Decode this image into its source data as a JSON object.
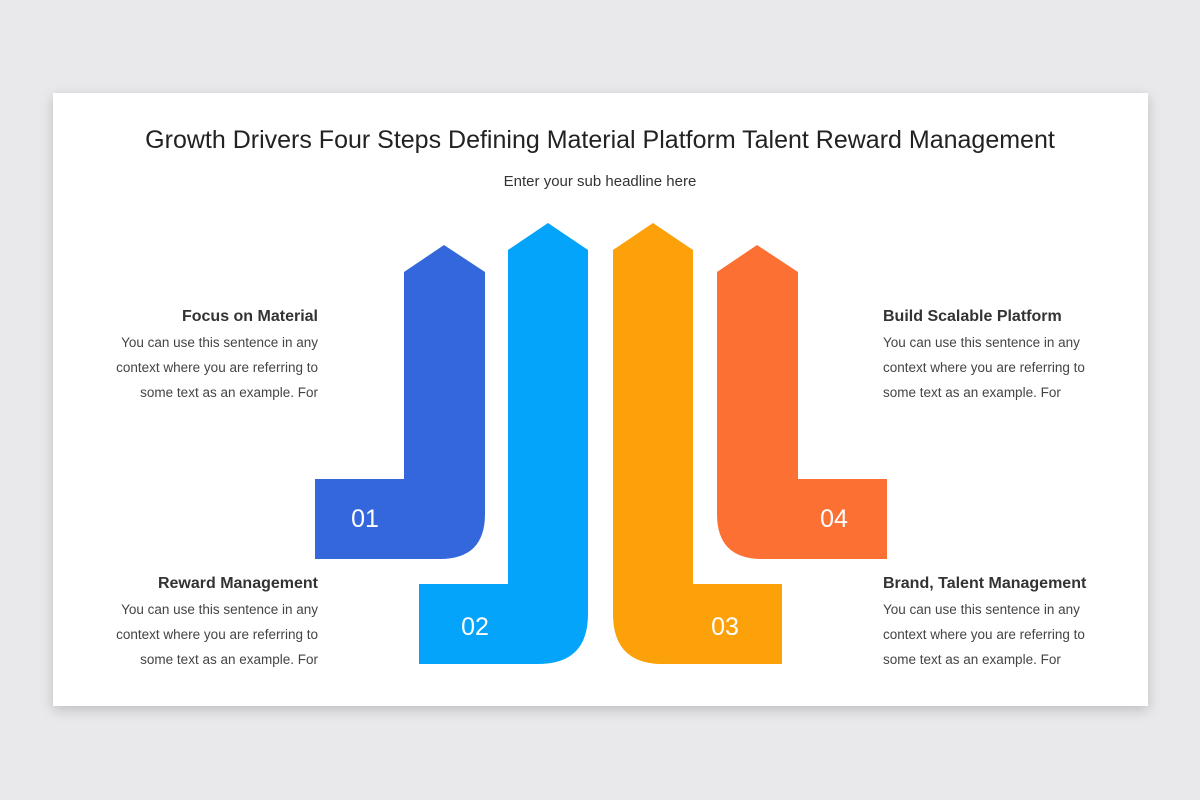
{
  "title": "Growth Drivers Four Steps Defining Material Platform Talent Reward Management",
  "subtitle": "Enter your sub headline here",
  "steps": [
    {
      "number": "01",
      "heading": "Focus on Material",
      "text": "You can use this sentence  in any context where you are referring to some text as an example. For",
      "color": "#3567dc"
    },
    {
      "number": "02",
      "heading": "Reward Management",
      "text": "You can use this sentence  in any context where you are referring to some text as an example. For",
      "color": "#03a4f9"
    },
    {
      "number": "03",
      "heading": "Brand, Talent Management",
      "text": "You can use this sentence  in any context where you are referring to some text as an example. For",
      "color": "#fca10a"
    },
    {
      "number": "04",
      "heading": "Build Scalable Platform",
      "text": "You can use this sentence  in any context where you are referring to some text as an example. For",
      "color": "#fd7034"
    }
  ]
}
